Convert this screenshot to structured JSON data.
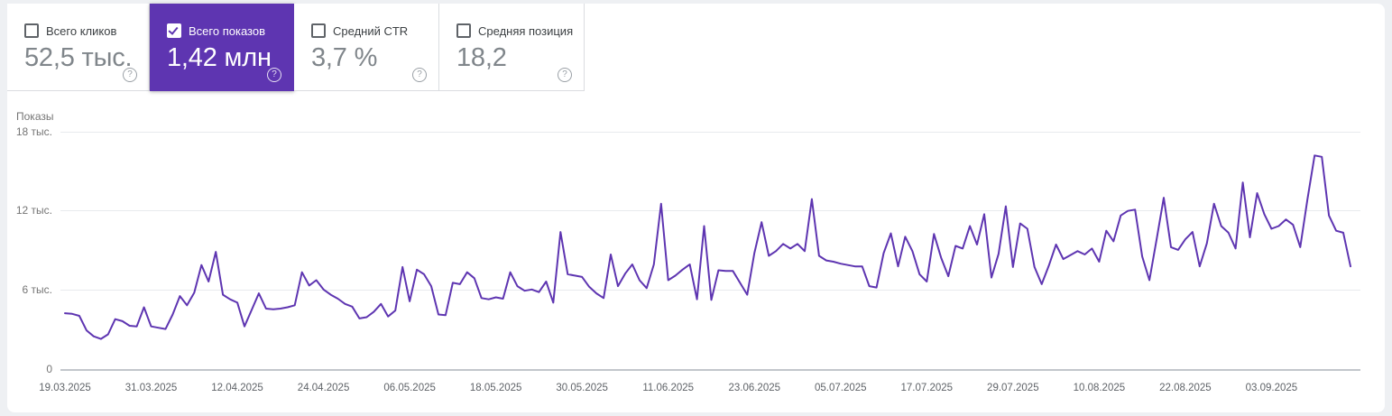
{
  "cards": [
    {
      "label": "Всего кликов",
      "value": "52,5 тыс.",
      "checked": false,
      "selected": false
    },
    {
      "label": "Всего показов",
      "value": "1,42 млн",
      "checked": true,
      "selected": true
    },
    {
      "label": "Средний CTR",
      "value": "3,7 %",
      "checked": false,
      "selected": false
    },
    {
      "label": "Средняя позиция",
      "value": "18,2",
      "checked": false,
      "selected": false
    }
  ],
  "help_icon_glyph": "?",
  "colors": {
    "accent_purple": "#5e35b1",
    "panel_background": "#ffffff",
    "page_background": "#eef0f3",
    "gridline": "#e8eaed",
    "axis_text": "#757575",
    "date_text": "#5f6368",
    "metric_value_gray": "#80868b"
  },
  "chart_data": {
    "type": "line",
    "title": "Показы",
    "ylabel": "Показы",
    "xlabel": "",
    "ylim": [
      0,
      18000
    ],
    "grid": "horizontal-only",
    "legend_position": "none",
    "y_ticks": [
      "18 тыс.",
      "12 тыс.",
      "6 тыс.",
      "0"
    ],
    "y_tick_values": [
      18000,
      12000,
      6000,
      0
    ],
    "x_tick_labels": [
      "19.03.2025",
      "31.03.2025",
      "12.04.2025",
      "24.04.2025",
      "06.05.2025",
      "18.05.2025",
      "30.05.2025",
      "11.06.2025",
      "23.06.2025",
      "05.07.2025",
      "17.07.2025",
      "29.07.2025",
      "10.08.2025",
      "22.08.2025",
      "03.09.2025"
    ],
    "x_start_date": "19.03.2025",
    "x_end_date": "14.09.2025",
    "x_interval": "daily",
    "series": [
      {
        "name": "Показы",
        "color": "#5e35b1",
        "values": [
          4200,
          4150,
          4000,
          2900,
          2450,
          2250,
          2600,
          3750,
          3600,
          3250,
          3200,
          4650,
          3200,
          3100,
          3000,
          4100,
          5500,
          4800,
          5750,
          7850,
          6600,
          8850,
          5600,
          5250,
          5000,
          3200,
          4450,
          5700,
          4550,
          4500,
          4550,
          4650,
          4800,
          7300,
          6300,
          6700,
          6000,
          5600,
          5300,
          4900,
          4700,
          3800,
          3900,
          4300,
          4900,
          3950,
          4400,
          7700,
          5100,
          7500,
          7150,
          6250,
          4100,
          4050,
          6500,
          6400,
          7300,
          6850,
          5350,
          5250,
          5400,
          5300,
          7300,
          6250,
          5900,
          6000,
          5800,
          6600,
          5000,
          10350,
          7150,
          7050,
          6950,
          6200,
          5700,
          5350,
          8650,
          6250,
          7200,
          7900,
          6700,
          6100,
          7900,
          12500,
          6700,
          7050,
          7500,
          7900,
          5250,
          10800,
          5200,
          7450,
          7400,
          7400,
          6500,
          5600,
          8750,
          11100,
          8550,
          8900,
          9450,
          9100,
          9450,
          8900,
          12850,
          8550,
          8200,
          8100,
          7950,
          7850,
          7750,
          7750,
          6250,
          6150,
          8750,
          10250,
          7750,
          10000,
          8900,
          7150,
          6600,
          10200,
          8400,
          7000,
          9300,
          9100,
          10800,
          9400,
          11700,
          6900,
          8700,
          12300,
          7700,
          11000,
          10600,
          7700,
          6400,
          7800,
          9400,
          8300,
          8600,
          8900,
          8650,
          9100,
          8100,
          10450,
          9650,
          11600,
          11950,
          12050,
          8500,
          6700,
          9800,
          12950,
          9200,
          9000,
          9800,
          10350,
          7750,
          9500,
          12500,
          10800,
          10300,
          9100,
          14100,
          9950,
          13300,
          11700,
          10600,
          10800,
          11300,
          10900,
          9200,
          12800,
          16150,
          16050,
          11600,
          10450,
          10300,
          7750
        ]
      }
    ]
  }
}
